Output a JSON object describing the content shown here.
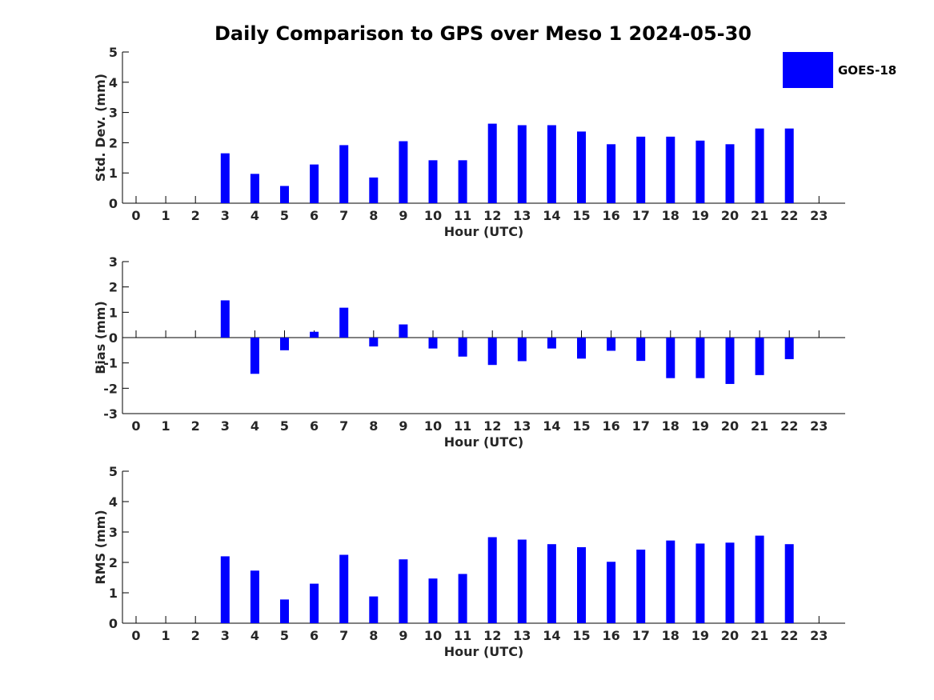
{
  "title": "Daily Comparison to GPS over Meso 1 2024-05-30",
  "legend": {
    "label": "GOES-18",
    "color": "#0000ff",
    "position": "top-right"
  },
  "chart_data": [
    {
      "type": "bar",
      "xlabel": "Hour (UTC)",
      "ylabel": "Std. Dev. (mm)",
      "ylim": [
        0,
        5
      ],
      "yticks": [
        "0",
        "1",
        "2",
        "3",
        "4",
        "5"
      ],
      "categories": [
        "0",
        "1",
        "2",
        "3",
        "4",
        "5",
        "6",
        "7",
        "8",
        "9",
        "10",
        "11",
        "12",
        "13",
        "14",
        "15",
        "16",
        "17",
        "18",
        "19",
        "20",
        "21",
        "22",
        "23"
      ],
      "series": [
        {
          "name": "GOES-18",
          "color": "#0000ff",
          "values": [
            null,
            null,
            null,
            1.65,
            0.97,
            0.57,
            1.28,
            1.92,
            0.85,
            2.05,
            1.42,
            1.42,
            2.63,
            2.58,
            2.58,
            2.37,
            1.95,
            2.2,
            2.2,
            2.07,
            1.95,
            2.47,
            2.47,
            null
          ]
        }
      ],
      "grid": false
    },
    {
      "type": "bar",
      "xlabel": "Hour (UTC)",
      "ylabel": "Bias (mm)",
      "ylim": [
        -3,
        3
      ],
      "yticks": [
        "-3",
        "-2",
        "-1",
        "0",
        "1",
        "2",
        "3"
      ],
      "categories": [
        "0",
        "1",
        "2",
        "3",
        "4",
        "5",
        "6",
        "7",
        "8",
        "9",
        "10",
        "11",
        "12",
        "13",
        "14",
        "15",
        "16",
        "17",
        "18",
        "19",
        "20",
        "21",
        "22",
        "23"
      ],
      "series": [
        {
          "name": "GOES-18",
          "color": "#0000ff",
          "values": [
            null,
            null,
            null,
            1.47,
            -1.43,
            -0.5,
            0.23,
            1.18,
            -0.35,
            0.52,
            -0.43,
            -0.75,
            -1.08,
            -0.93,
            -0.43,
            -0.83,
            -0.52,
            -0.92,
            -1.6,
            -1.6,
            -1.83,
            -1.48,
            -0.85,
            null
          ]
        }
      ],
      "grid": false
    },
    {
      "type": "bar",
      "xlabel": "Hour (UTC)",
      "ylabel": "RMS (mm)",
      "ylim": [
        0,
        5
      ],
      "yticks": [
        "0",
        "1",
        "2",
        "3",
        "4",
        "5"
      ],
      "categories": [
        "0",
        "1",
        "2",
        "3",
        "4",
        "5",
        "6",
        "7",
        "8",
        "9",
        "10",
        "11",
        "12",
        "13",
        "14",
        "15",
        "16",
        "17",
        "18",
        "19",
        "20",
        "21",
        "22",
        "23"
      ],
      "series": [
        {
          "name": "GOES-18",
          "color": "#0000ff",
          "values": [
            null,
            null,
            null,
            2.2,
            1.73,
            0.78,
            1.3,
            2.25,
            0.88,
            2.1,
            1.47,
            1.62,
            2.83,
            2.75,
            2.6,
            2.5,
            2.02,
            2.42,
            2.72,
            2.62,
            2.65,
            2.88,
            2.6,
            null
          ]
        }
      ],
      "grid": false
    }
  ]
}
